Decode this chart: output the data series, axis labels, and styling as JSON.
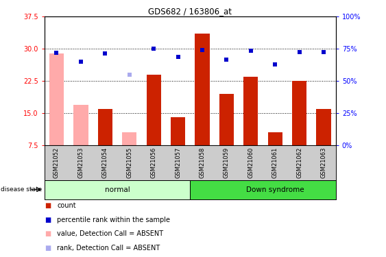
{
  "title": "GDS682 / 163806_at",
  "samples": [
    "GSM21052",
    "GSM21053",
    "GSM21054",
    "GSM21055",
    "GSM21056",
    "GSM21057",
    "GSM21058",
    "GSM21059",
    "GSM21060",
    "GSM21061",
    "GSM21062",
    "GSM21063"
  ],
  "bar_values": [
    29.0,
    17.0,
    16.0,
    10.5,
    24.0,
    14.0,
    33.5,
    19.5,
    23.5,
    10.5,
    22.5,
    16.0
  ],
  "bar_absent": [
    true,
    true,
    false,
    true,
    false,
    false,
    false,
    false,
    false,
    false,
    false,
    false
  ],
  "rank_values": [
    72.0,
    65.0,
    71.5,
    55.0,
    75.0,
    69.0,
    74.0,
    66.5,
    73.5,
    63.0,
    72.5,
    72.5
  ],
  "rank_absent": [
    false,
    false,
    false,
    true,
    false,
    false,
    false,
    false,
    false,
    false,
    false,
    false
  ],
  "ylim_left": [
    7.5,
    37.5
  ],
  "ylim_right": [
    0,
    100
  ],
  "yticks_left": [
    7.5,
    15.0,
    22.5,
    30.0,
    37.5
  ],
  "yticks_right": [
    0,
    25,
    50,
    75,
    100
  ],
  "ytick_labels_right": [
    "0%",
    "25%",
    "50%",
    "75%",
    "100%"
  ],
  "normal_indices": [
    0,
    1,
    2,
    3,
    4,
    5
  ],
  "down_indices": [
    6,
    7,
    8,
    9,
    10,
    11
  ],
  "normal_color": "#ccffcc",
  "down_color": "#44dd44",
  "bar_color_present": "#cc2200",
  "bar_color_absent": "#ffaaaa",
  "rank_color_present": "#0000cc",
  "rank_color_absent": "#aaaaee",
  "tick_bg_color": "#cccccc",
  "grid_dotted_at": [
    15.0,
    22.5,
    30.0
  ],
  "legend_items": [
    {
      "color": "#cc2200",
      "label": "count"
    },
    {
      "color": "#0000cc",
      "label": "percentile rank within the sample"
    },
    {
      "color": "#ffaaaa",
      "label": "value, Detection Call = ABSENT"
    },
    {
      "color": "#aaaaee",
      "label": "rank, Detection Call = ABSENT"
    }
  ]
}
